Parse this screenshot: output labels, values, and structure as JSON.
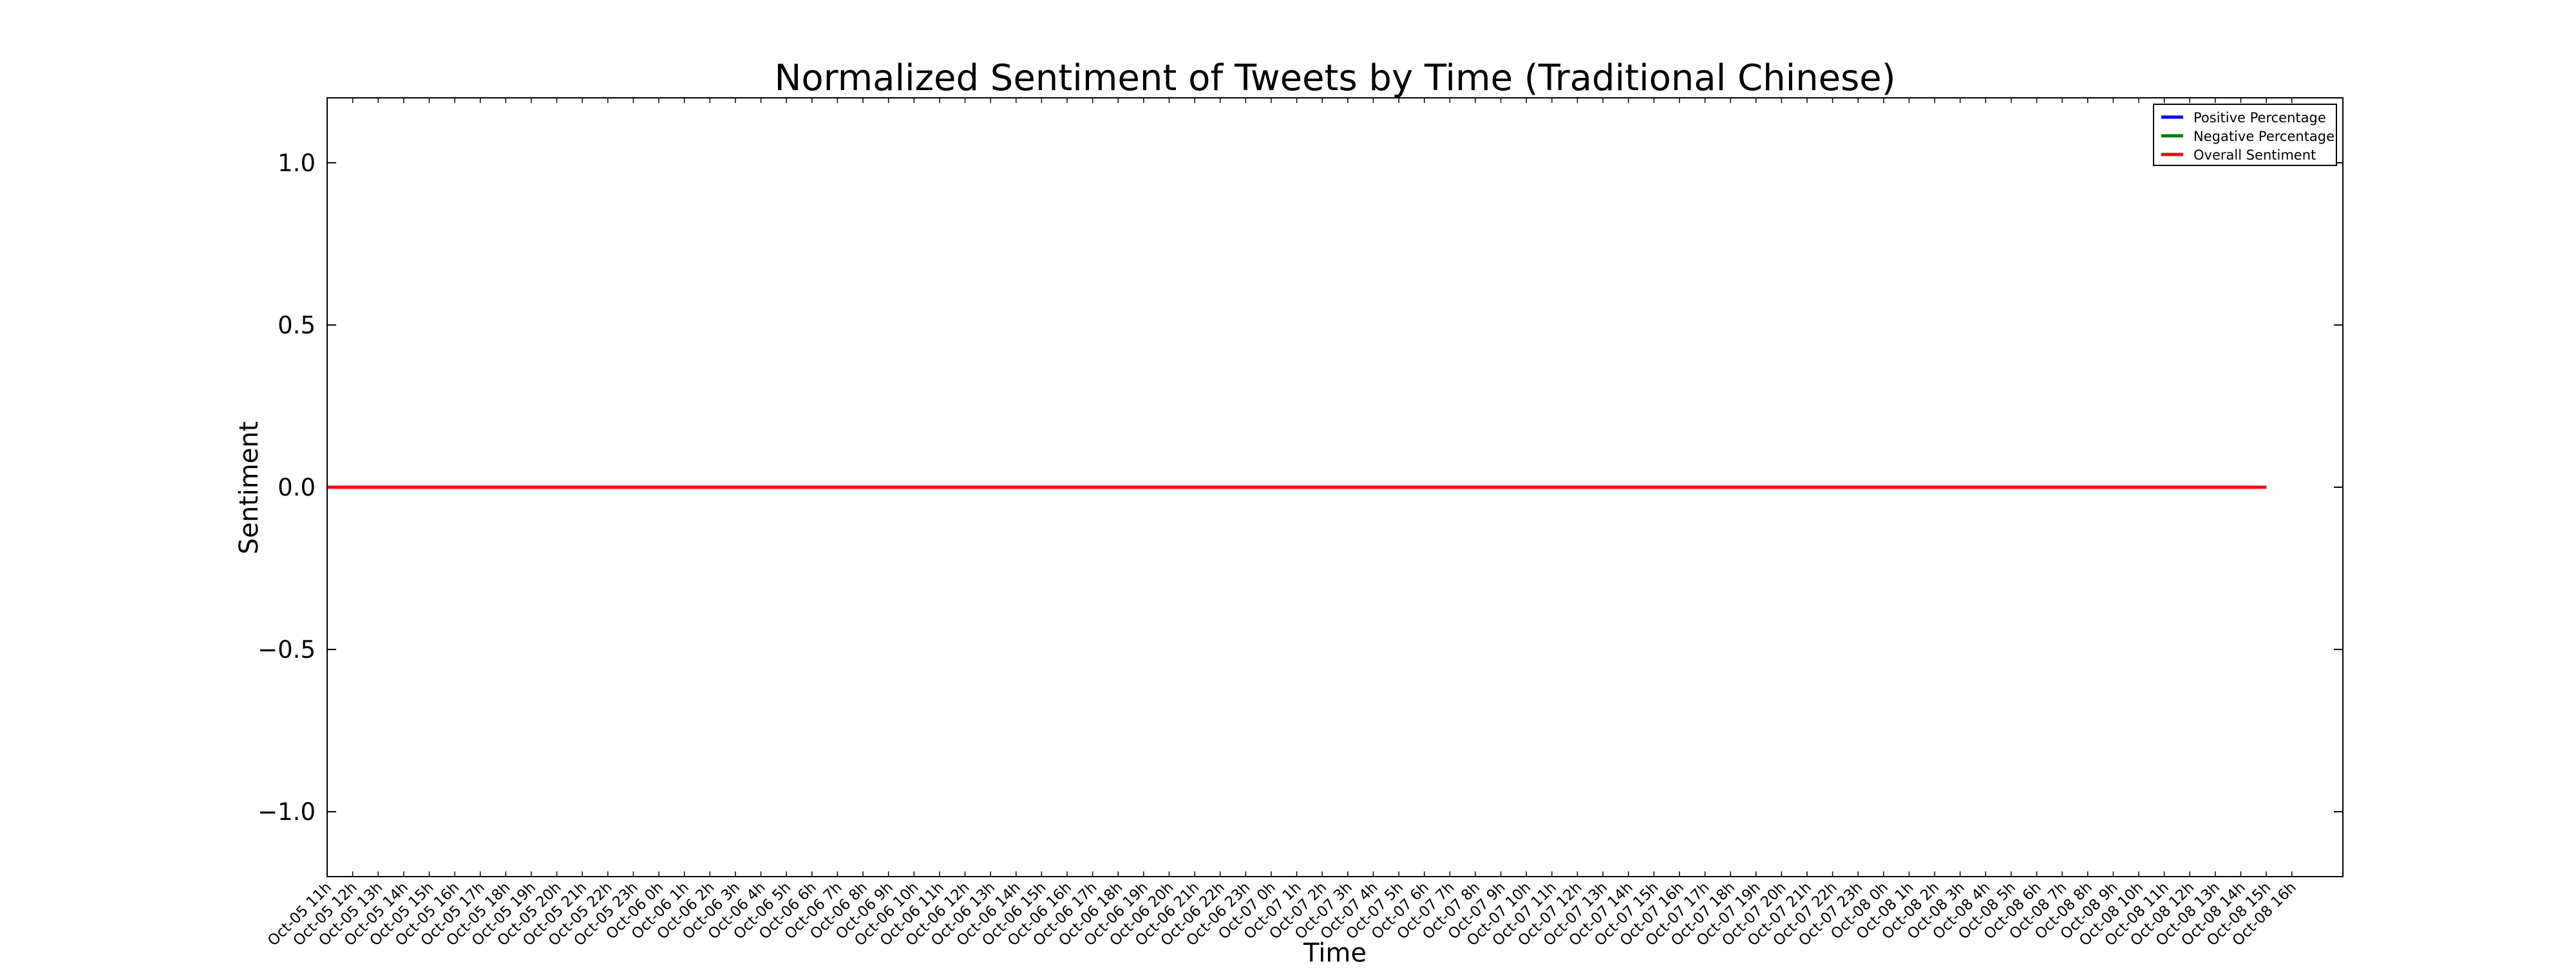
{
  "chart_data": {
    "type": "line",
    "title": "Normalized Sentiment of Tweets by Time (Traditional Chinese)",
    "x_label": "Time",
    "y_label": "Sentiment",
    "categories": [
      "Oct-05 11h",
      "Oct-05 12h",
      "Oct-05 13h",
      "Oct-05 14h",
      "Oct-05 15h",
      "Oct-05 16h",
      "Oct-05 17h",
      "Oct-05 18h",
      "Oct-05 19h",
      "Oct-05 20h",
      "Oct-05 21h",
      "Oct-05 22h",
      "Oct-05 23h",
      "Oct-06 0h",
      "Oct-06 1h",
      "Oct-06 2h",
      "Oct-06 3h",
      "Oct-06 4h",
      "Oct-06 5h",
      "Oct-06 6h",
      "Oct-06 7h",
      "Oct-06 8h",
      "Oct-06 9h",
      "Oct-06 10h",
      "Oct-06 11h",
      "Oct-06 12h",
      "Oct-06 13h",
      "Oct-06 14h",
      "Oct-06 15h",
      "Oct-06 16h",
      "Oct-06 17h",
      "Oct-06 18h",
      "Oct-06 19h",
      "Oct-06 20h",
      "Oct-06 21h",
      "Oct-06 22h",
      "Oct-06 23h",
      "Oct-07 0h",
      "Oct-07 1h",
      "Oct-07 2h",
      "Oct-07 3h",
      "Oct-07 4h",
      "Oct-07 5h",
      "Oct-07 6h",
      "Oct-07 7h",
      "Oct-07 8h",
      "Oct-07 9h",
      "Oct-07 10h",
      "Oct-07 11h",
      "Oct-07 12h",
      "Oct-07 13h",
      "Oct-07 14h",
      "Oct-07 15h",
      "Oct-07 16h",
      "Oct-07 17h",
      "Oct-07 18h",
      "Oct-07 19h",
      "Oct-07 20h",
      "Oct-07 21h",
      "Oct-07 22h",
      "Oct-07 23h",
      "Oct-08 0h",
      "Oct-08 1h",
      "Oct-08 2h",
      "Oct-08 3h",
      "Oct-08 4h",
      "Oct-08 5h",
      "Oct-08 6h",
      "Oct-08 7h",
      "Oct-08 8h",
      "Oct-08 9h",
      "Oct-08 10h",
      "Oct-08 11h",
      "Oct-08 12h",
      "Oct-08 13h",
      "Oct-08 14h",
      "Oct-08 15h",
      "Oct-08 16h"
    ],
    "series": [
      {
        "name": "Positive Percentage",
        "color": "#0000ff",
        "values": [
          0,
          0,
          0,
          0,
          0,
          0,
          0,
          0,
          0,
          0,
          0,
          0,
          0,
          0,
          0,
          0,
          0,
          0,
          0,
          0,
          0,
          0,
          0,
          0,
          0,
          0,
          0,
          0,
          0,
          0,
          0,
          0,
          0,
          0,
          0,
          0,
          0,
          0,
          0,
          0,
          0,
          0,
          0,
          0,
          0,
          0,
          0,
          0,
          0,
          0,
          0,
          0,
          0,
          0,
          0,
          0,
          0,
          0,
          0,
          0,
          0,
          0,
          0,
          0,
          0,
          0,
          0,
          0,
          0,
          0,
          0,
          0,
          0,
          0,
          0,
          0,
          0,
          null
        ]
      },
      {
        "name": "Negative Percentage",
        "color": "#008000",
        "values": [
          0,
          0,
          0,
          0,
          0,
          0,
          0,
          0,
          0,
          0,
          0,
          0,
          0,
          0,
          0,
          0,
          0,
          0,
          0,
          0,
          0,
          0,
          0,
          0,
          0,
          0,
          0,
          0,
          0,
          0,
          0,
          0,
          0,
          0,
          0,
          0,
          0,
          0,
          0,
          0,
          0,
          0,
          0,
          0,
          0,
          0,
          0,
          0,
          0,
          0,
          0,
          0,
          0,
          0,
          0,
          0,
          0,
          0,
          0,
          0,
          0,
          0,
          0,
          0,
          0,
          0,
          0,
          0,
          0,
          0,
          0,
          0,
          0,
          0,
          0,
          0,
          0,
          null
        ]
      },
      {
        "name": "Overall Sentiment",
        "color": "#ff0000",
        "values": [
          0,
          0,
          0,
          0,
          0,
          0,
          0,
          0,
          0,
          0,
          0,
          0,
          0,
          0,
          0,
          0,
          0,
          0,
          0,
          0,
          0,
          0,
          0,
          0,
          0,
          0,
          0,
          0,
          0,
          0,
          0,
          0,
          0,
          0,
          0,
          0,
          0,
          0,
          0,
          0,
          0,
          0,
          0,
          0,
          0,
          0,
          0,
          0,
          0,
          0,
          0,
          0,
          0,
          0,
          0,
          0,
          0,
          0,
          0,
          0,
          0,
          0,
          0,
          0,
          0,
          0,
          0,
          0,
          0,
          0,
          0,
          0,
          0,
          0,
          0,
          0,
          0,
          null
        ]
      }
    ],
    "ylim": [
      -1.2,
      1.2
    ],
    "yticks": [
      {
        "value": -1,
        "label": "−1.0"
      },
      {
        "value": -0.5,
        "label": "−0.5"
      },
      {
        "value": 0,
        "label": "0.0"
      },
      {
        "value": 0.5,
        "label": "0.5"
      },
      {
        "value": 1,
        "label": "1.0"
      }
    ],
    "legend": "upper right"
  }
}
